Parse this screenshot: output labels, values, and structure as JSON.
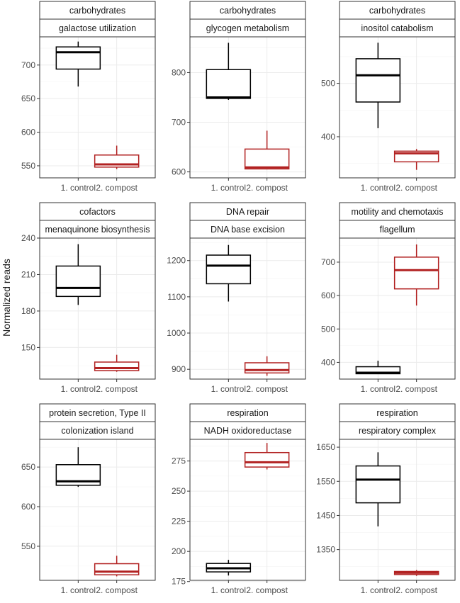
{
  "chart_data": {
    "type": "boxplot",
    "ylabel": "Normalized reads",
    "categories": [
      "1. control",
      "2. compost"
    ],
    "colors": {
      "1. control": "#000000",
      "2. compost": "#b22222"
    },
    "facets": [
      {
        "group": "carbohydrates",
        "subsystem": "galactose utilization",
        "ylim": [
          532,
          742
        ],
        "yticks": [
          550,
          600,
          650,
          700
        ],
        "boxes": [
          {
            "category": "1. control",
            "min": 668,
            "q1": 694,
            "median": 719,
            "q3": 727,
            "max": 735
          },
          {
            "category": "2. compost",
            "min": 545,
            "q1": 548,
            "median": 552,
            "q3": 566,
            "max": 580
          }
        ]
      },
      {
        "group": "carbohydrates",
        "subsystem": "glycogen metabolism",
        "ylim": [
          588,
          872
        ],
        "yticks": [
          600,
          700,
          800
        ],
        "boxes": [
          {
            "category": "1. control",
            "min": 745,
            "q1": 748,
            "median": 750,
            "q3": 806,
            "max": 860
          },
          {
            "category": "2. compost",
            "min": 605,
            "q1": 606,
            "median": 609,
            "q3": 646,
            "max": 683
          }
        ]
      },
      {
        "group": "carbohydrates",
        "subsystem": "inositol catabolism",
        "ylim": [
          323,
          587
        ],
        "yticks": [
          400,
          500
        ],
        "boxes": [
          {
            "category": "1. control",
            "min": 416,
            "q1": 465,
            "median": 515,
            "q3": 546,
            "max": 576
          },
          {
            "category": "2. compost",
            "min": 338,
            "q1": 353,
            "median": 369,
            "q3": 373,
            "max": 377
          }
        ]
      },
      {
        "group": "cofactors",
        "subsystem": "menaquinone biosynthesis",
        "ylim": [
          124,
          240
        ],
        "yticks": [
          150,
          180,
          210,
          240
        ],
        "boxes": [
          {
            "category": "1. control",
            "min": 185,
            "q1": 192,
            "median": 199,
            "q3": 217,
            "max": 235
          },
          {
            "category": "2. compost",
            "min": 130,
            "q1": 131,
            "median": 133,
            "q3": 138,
            "max": 144
          }
        ]
      },
      {
        "group": "DNA repair",
        "subsystem": "DNA base excision",
        "ylim": [
          873,
          1262
        ],
        "yticks": [
          900,
          1000,
          1100,
          1200
        ],
        "boxes": [
          {
            "category": "1. control",
            "min": 1087,
            "q1": 1136,
            "median": 1186,
            "q3": 1215,
            "max": 1243
          },
          {
            "category": "2. compost",
            "min": 882,
            "q1": 890,
            "median": 898,
            "q3": 918,
            "max": 936
          }
        ]
      },
      {
        "group": "motility and chemotaxis",
        "subsystem": "flagellum",
        "ylim": [
          350,
          772
        ],
        "yticks": [
          400,
          500,
          600,
          700
        ],
        "boxes": [
          {
            "category": "1. control",
            "min": 365,
            "q1": 366,
            "median": 369,
            "q3": 387,
            "max": 405
          },
          {
            "category": "2. compost",
            "min": 570,
            "q1": 620,
            "median": 676,
            "q3": 715,
            "max": 753
          }
        ]
      },
      {
        "group": "protein secretion, Type II",
        "subsystem": "colonization island",
        "ylim": [
          507,
          685
        ],
        "yticks": [
          550,
          600,
          650
        ],
        "boxes": [
          {
            "category": "1. control",
            "min": 625,
            "q1": 627,
            "median": 632,
            "q3": 653,
            "max": 675
          },
          {
            "category": "2. compost",
            "min": 512,
            "q1": 514,
            "median": 518,
            "q3": 528,
            "max": 538
          }
        ]
      },
      {
        "group": "respiration",
        "subsystem": "NADH oxidoreductase",
        "ylim": [
          176,
          293
        ],
        "yticks": [
          175,
          200,
          225,
          250,
          275
        ],
        "boxes": [
          {
            "category": "1. control",
            "min": 180,
            "q1": 183,
            "median": 186,
            "q3": 190,
            "max": 193
          },
          {
            "category": "2. compost",
            "min": 268,
            "q1": 270,
            "median": 274,
            "q3": 282,
            "max": 290
          }
        ]
      },
      {
        "group": "respiration",
        "subsystem": "respiratory complex",
        "ylim": [
          1260,
          1673
        ],
        "yticks": [
          1350,
          1450,
          1550,
          1650
        ],
        "boxes": [
          {
            "category": "1. control",
            "min": 1418,
            "q1": 1487,
            "median": 1555,
            "q3": 1595,
            "max": 1635
          },
          {
            "category": "2. compost",
            "min": 1273,
            "q1": 1277,
            "median": 1282,
            "q3": 1286,
            "max": 1290
          }
        ]
      }
    ]
  }
}
